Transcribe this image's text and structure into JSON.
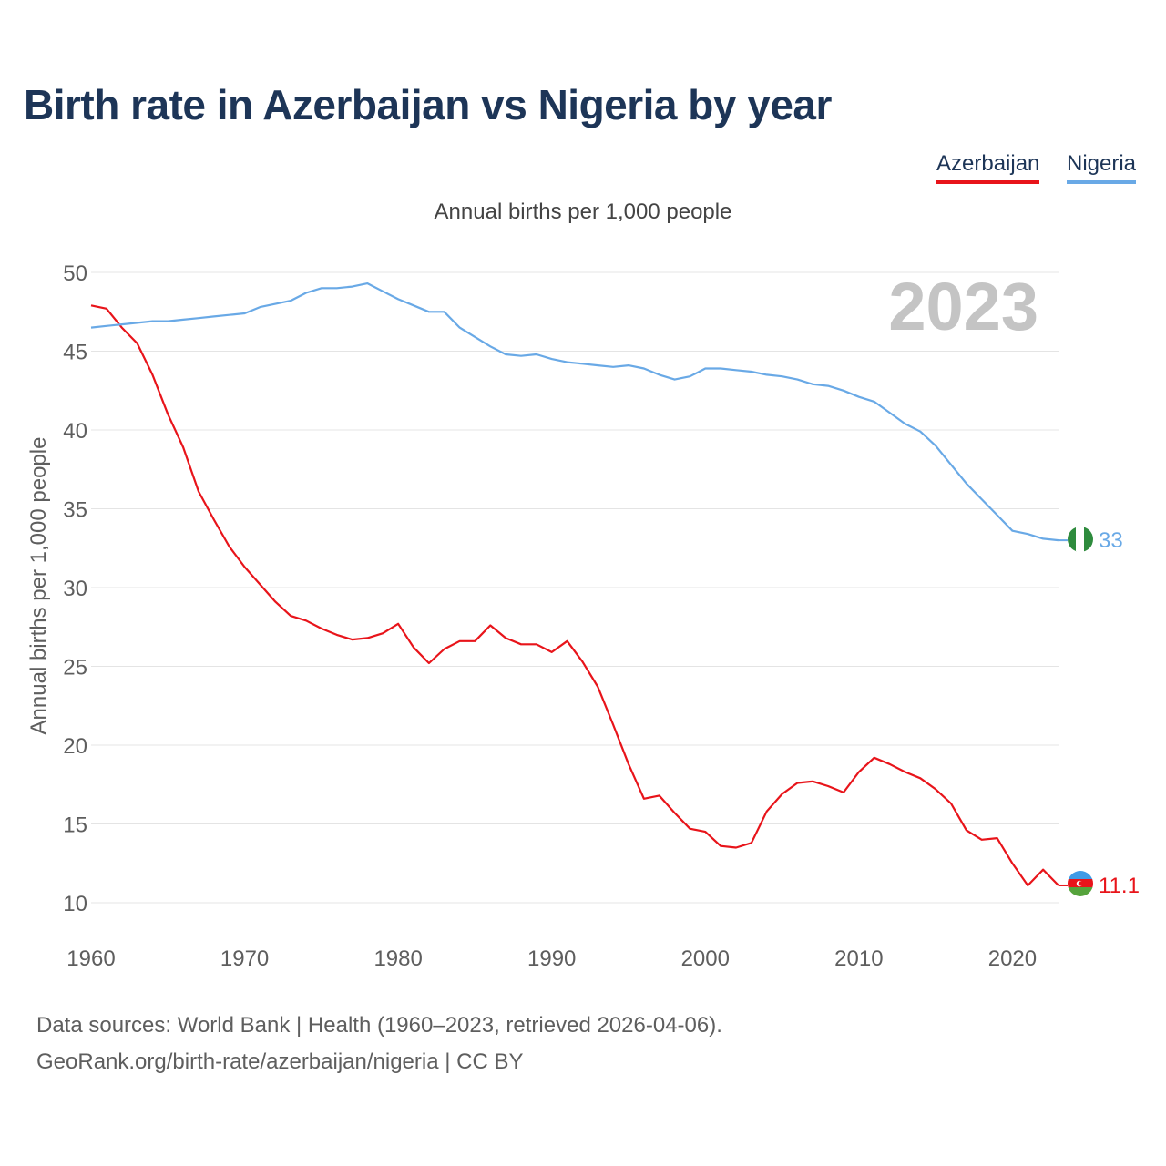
{
  "title": "Birth rate in Azerbaijan vs Nigeria by year",
  "legend": {
    "azerbaijan": "Azerbaijan",
    "nigeria": "Nigeria"
  },
  "subtitle": "Annual births per 1,000 people",
  "year_watermark": "2023",
  "footer": {
    "line1": "Data sources: World Bank | Health (1960–2023, retrieved 2026-04-06).",
    "line2": "GeoRank.org/birth-rate/azerbaijan/nigeria | CC BY"
  },
  "colors": {
    "azerbaijan": "#e8141a",
    "nigeria": "#69a9e6",
    "title": "#1d3557",
    "grid": "#e4e4e4",
    "tick": "#5e5e5e",
    "watermark": "#c4c4c4"
  },
  "chart_data": {
    "type": "line",
    "title": "Birth rate in Azerbaijan vs Nigeria by year",
    "ylabel": "Annual births per 1,000 people",
    "xlabel": "",
    "xlim": [
      1960,
      2023
    ],
    "ylim": [
      10,
      50
    ],
    "yticks": [
      10,
      15,
      20,
      25,
      30,
      35,
      40,
      45,
      50
    ],
    "xticks": [
      1960,
      1970,
      1980,
      1990,
      2000,
      2010,
      2020
    ],
    "grid": true,
    "x": [
      1960,
      1961,
      1962,
      1963,
      1964,
      1965,
      1966,
      1967,
      1968,
      1969,
      1970,
      1971,
      1972,
      1973,
      1974,
      1975,
      1976,
      1977,
      1978,
      1979,
      1980,
      1981,
      1982,
      1983,
      1984,
      1985,
      1986,
      1987,
      1988,
      1989,
      1990,
      1991,
      1992,
      1993,
      1994,
      1995,
      1996,
      1997,
      1998,
      1999,
      2000,
      2001,
      2002,
      2003,
      2004,
      2005,
      2006,
      2007,
      2008,
      2009,
      2010,
      2011,
      2012,
      2013,
      2014,
      2015,
      2016,
      2017,
      2018,
      2019,
      2020,
      2021,
      2022,
      2023
    ],
    "series": [
      {
        "name": "Azerbaijan",
        "color": "#e8141a",
        "end_label": "11.1",
        "values": [
          47.9,
          47.7,
          46.5,
          45.5,
          43.5,
          41.0,
          38.9,
          36.1,
          34.3,
          32.6,
          31.3,
          30.2,
          29.1,
          28.2,
          27.9,
          27.4,
          27.0,
          26.7,
          26.8,
          27.1,
          27.7,
          26.2,
          25.2,
          26.1,
          26.6,
          26.6,
          27.6,
          26.8,
          26.4,
          26.4,
          25.9,
          26.6,
          25.3,
          23.7,
          21.3,
          18.8,
          16.6,
          16.8,
          15.7,
          14.7,
          14.5,
          13.6,
          13.5,
          13.8,
          15.8,
          16.9,
          17.6,
          17.7,
          17.4,
          17.0,
          18.3,
          19.2,
          18.8,
          18.3,
          17.9,
          17.2,
          16.3,
          14.6,
          14.0,
          14.1,
          12.5,
          11.1,
          12.1,
          11.1
        ]
      },
      {
        "name": "Nigeria",
        "color": "#69a9e6",
        "end_label": "33",
        "values": [
          46.5,
          46.6,
          46.7,
          46.8,
          46.9,
          46.9,
          47.0,
          47.1,
          47.2,
          47.3,
          47.4,
          47.8,
          48.0,
          48.2,
          48.7,
          49.0,
          49.0,
          49.1,
          49.3,
          48.8,
          48.3,
          47.9,
          47.5,
          47.5,
          46.5,
          45.9,
          45.3,
          44.8,
          44.7,
          44.8,
          44.5,
          44.3,
          44.2,
          44.1,
          44.0,
          44.1,
          43.9,
          43.5,
          43.2,
          43.4,
          43.9,
          43.9,
          43.8,
          43.7,
          43.5,
          43.4,
          43.2,
          42.9,
          42.8,
          42.5,
          42.1,
          41.8,
          41.1,
          40.4,
          39.9,
          39.0,
          37.8,
          36.6,
          35.6,
          34.6,
          33.6,
          33.4,
          33.1,
          33.0
        ]
      }
    ]
  }
}
